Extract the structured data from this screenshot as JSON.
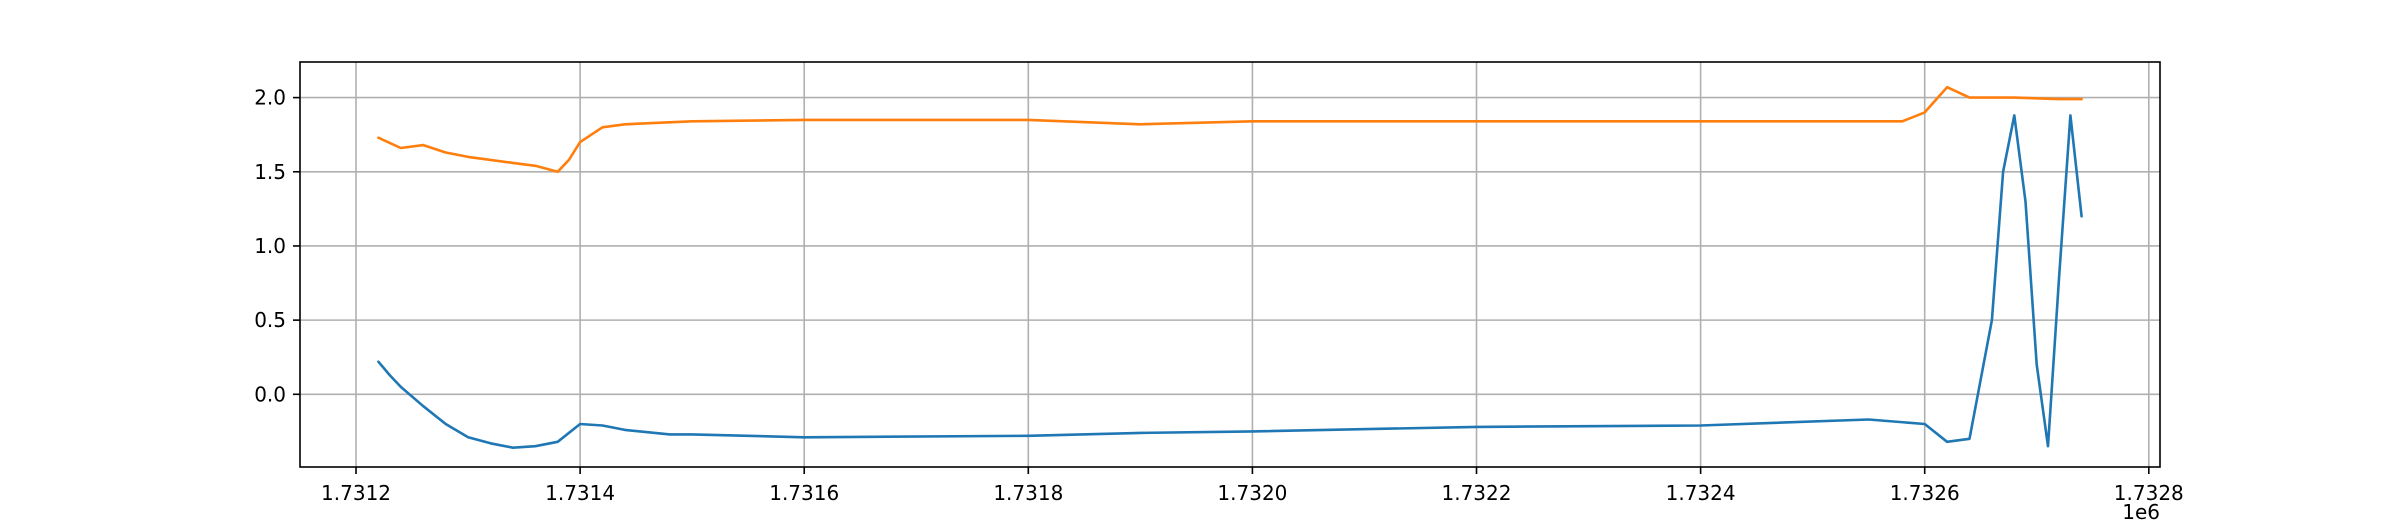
{
  "chart_data": {
    "type": "line",
    "title": "",
    "xlabel": "",
    "ylabel": "",
    "x_offset_label": "1e6",
    "xlim": [
      1.73115,
      1.73281
    ],
    "ylim": [
      -0.49,
      2.24
    ],
    "grid": true,
    "legend": "none",
    "x_ticks": [
      {
        "value": 1.7312,
        "label": "1.7312"
      },
      {
        "value": 1.7314,
        "label": "1.7314"
      },
      {
        "value": 1.7316,
        "label": "1.7316"
      },
      {
        "value": 1.7318,
        "label": "1.7318"
      },
      {
        "value": 1.732,
        "label": "1.7320"
      },
      {
        "value": 1.7322,
        "label": "1.7322"
      },
      {
        "value": 1.7324,
        "label": "1.7324"
      },
      {
        "value": 1.7326,
        "label": "1.7326"
      },
      {
        "value": 1.7328,
        "label": "1.7328"
      }
    ],
    "y_ticks": [
      {
        "value": 0.0,
        "label": "0.0"
      },
      {
        "value": 0.5,
        "label": "0.5"
      },
      {
        "value": 1.0,
        "label": "1.0"
      },
      {
        "value": 1.5,
        "label": "1.5"
      },
      {
        "value": 2.0,
        "label": "2.0"
      }
    ],
    "series": [
      {
        "color": "#1f77b4",
        "points": [
          [
            1.73122,
            0.22
          ],
          [
            1.73123,
            0.13
          ],
          [
            1.73124,
            0.05
          ],
          [
            1.73126,
            -0.08
          ],
          [
            1.73128,
            -0.2
          ],
          [
            1.7313,
            -0.29
          ],
          [
            1.73132,
            -0.33
          ],
          [
            1.73134,
            -0.36
          ],
          [
            1.73136,
            -0.35
          ],
          [
            1.73138,
            -0.32
          ],
          [
            1.7314,
            -0.2
          ],
          [
            1.73142,
            -0.21
          ],
          [
            1.73144,
            -0.24
          ],
          [
            1.73148,
            -0.27
          ],
          [
            1.7315,
            -0.27
          ],
          [
            1.7316,
            -0.29
          ],
          [
            1.7318,
            -0.28
          ],
          [
            1.7319,
            -0.26
          ],
          [
            1.732,
            -0.25
          ],
          [
            1.7322,
            -0.22
          ],
          [
            1.7324,
            -0.21
          ],
          [
            1.73255,
            -0.17
          ],
          [
            1.7326,
            -0.2
          ],
          [
            1.73262,
            -0.32
          ],
          [
            1.73264,
            -0.3
          ],
          [
            1.73266,
            0.5
          ],
          [
            1.73267,
            1.5
          ],
          [
            1.73268,
            1.88
          ],
          [
            1.73269,
            1.3
          ],
          [
            1.7327,
            0.2
          ],
          [
            1.73271,
            -0.35
          ],
          [
            1.73272,
            0.8
          ],
          [
            1.73273,
            1.88
          ],
          [
            1.73274,
            1.2
          ]
        ]
      },
      {
        "color": "#ff7f0e",
        "points": [
          [
            1.73122,
            1.73
          ],
          [
            1.73124,
            1.66
          ],
          [
            1.73126,
            1.68
          ],
          [
            1.73128,
            1.63
          ],
          [
            1.7313,
            1.6
          ],
          [
            1.73132,
            1.58
          ],
          [
            1.73134,
            1.56
          ],
          [
            1.73136,
            1.54
          ],
          [
            1.73138,
            1.5
          ],
          [
            1.73139,
            1.58
          ],
          [
            1.7314,
            1.7
          ],
          [
            1.73142,
            1.8
          ],
          [
            1.73144,
            1.82
          ],
          [
            1.7315,
            1.84
          ],
          [
            1.7316,
            1.85
          ],
          [
            1.7318,
            1.85
          ],
          [
            1.7319,
            1.82
          ],
          [
            1.732,
            1.84
          ],
          [
            1.7322,
            1.84
          ],
          [
            1.7324,
            1.84
          ],
          [
            1.73258,
            1.84
          ],
          [
            1.7326,
            1.9
          ],
          [
            1.73262,
            2.07
          ],
          [
            1.73264,
            2.0
          ],
          [
            1.73268,
            2.0
          ],
          [
            1.73272,
            1.99
          ],
          [
            1.73274,
            1.99
          ]
        ]
      }
    ]
  }
}
